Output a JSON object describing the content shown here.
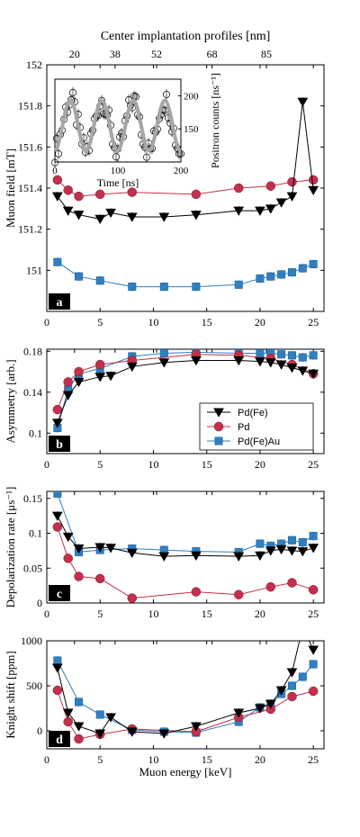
{
  "figure": {
    "top_axis_title": "Center implantation profiles [nm]",
    "top_ticks": [
      {
        "energy": 2.6,
        "label": "20"
      },
      {
        "energy": 6.4,
        "label": "38"
      },
      {
        "energy": 10.3,
        "label": "52"
      },
      {
        "energy": 15.5,
        "label": "68"
      },
      {
        "energy": 20.6,
        "label": "85"
      }
    ],
    "xlabel": "Muon energy [keV]",
    "x_ticks": [
      0,
      5,
      10,
      15,
      20,
      25
    ],
    "xlim": [
      0,
      26
    ]
  },
  "legend": [
    {
      "series": "Pd(Fe)",
      "label": "Pd(Fe)"
    },
    {
      "series": "Pd",
      "label": "Pd"
    },
    {
      "series": "Pd(Fe)Au",
      "label": "Pd(Fe)Au"
    }
  ],
  "styles": {
    "Pd(Fe)": {
      "color": "#000000",
      "marker": "triangle-down"
    },
    "Pd": {
      "color": "#c4304b",
      "marker": "circle"
    },
    "Pd(Fe)Au": {
      "color": "#2f7fc1",
      "marker": "square"
    }
  },
  "chart_data": [
    {
      "panel": "a",
      "type": "line",
      "ylabel": "Muon field [mT]",
      "ylim": [
        150.8,
        152
      ],
      "y_ticks": [
        {
          "v": 151,
          "label": "151"
        },
        {
          "v": 151.2,
          "label": "151.2"
        },
        {
          "v": 151.4,
          "label": "151.4"
        },
        {
          "v": 151.6,
          "label": "151.6"
        },
        {
          "v": 151.8,
          "label": "151.8"
        },
        {
          "v": 152,
          "label": "152"
        }
      ],
      "series": [
        {
          "name": "Pd(Fe)",
          "x": [
            1,
            2,
            3,
            5,
            6,
            8,
            11,
            14,
            18,
            20,
            21,
            22,
            23,
            24,
            25
          ],
          "y": [
            151.36,
            151.29,
            151.27,
            151.25,
            151.28,
            151.26,
            151.26,
            151.27,
            151.29,
            151.29,
            151.3,
            151.33,
            151.36,
            151.82,
            151.39
          ]
        },
        {
          "name": "Pd",
          "x": [
            1,
            2,
            3,
            5,
            8,
            14,
            18,
            21,
            23,
            25
          ],
          "y": [
            151.44,
            151.39,
            151.36,
            151.37,
            151.38,
            151.37,
            151.4,
            151.41,
            151.43,
            151.44
          ]
        },
        {
          "name": "Pd(Fe)Au",
          "x": [
            1,
            3,
            5,
            8,
            11,
            14,
            18,
            20,
            21,
            22,
            23,
            24,
            25
          ],
          "y": [
            151.04,
            150.97,
            150.95,
            150.92,
            150.92,
            150.92,
            150.93,
            150.96,
            150.97,
            150.98,
            150.99,
            151.01,
            151.03
          ]
        }
      ],
      "inset": {
        "type": "scatter",
        "xlabel": "Time [ns]",
        "ylabel": "Positron counts [ns⁻¹]",
        "x_ticks": [
          0,
          100,
          200
        ],
        "y_ticks": [
          150,
          200
        ],
        "xlim": [
          0,
          200
        ],
        "ylim": [
          100,
          225
        ],
        "fit": {
          "offset": 155,
          "amplitude": 38,
          "period_ns": 50,
          "phase": -1.5
        }
      }
    },
    {
      "panel": "b",
      "type": "line",
      "ylabel": "Asymmetry [arb.]",
      "ylim": [
        0.08,
        0.182
      ],
      "y_ticks": [
        {
          "v": 0.1,
          "label": "0.1"
        },
        {
          "v": 0.14,
          "label": "0.14"
        },
        {
          "v": 0.18,
          "label": "0.18"
        }
      ],
      "series": [
        {
          "name": "Pd(Fe)",
          "x": [
            1,
            2,
            3,
            5,
            6,
            8,
            11,
            14,
            18,
            20,
            21,
            22,
            23,
            24,
            25
          ],
          "y": [
            0.11,
            0.137,
            0.15,
            0.155,
            0.156,
            0.165,
            0.169,
            0.171,
            0.171,
            0.17,
            0.169,
            0.167,
            0.164,
            0.161,
            0.158
          ]
        },
        {
          "name": "Pd",
          "x": [
            1,
            2,
            3,
            5,
            8,
            14,
            18,
            21,
            23,
            25
          ],
          "y": [
            0.123,
            0.15,
            0.16,
            0.167,
            0.171,
            0.177,
            0.176,
            0.173,
            0.167,
            0.158
          ]
        },
        {
          "name": "Pd(Fe)Au",
          "x": [
            1,
            2,
            3,
            5,
            8,
            11,
            14,
            18,
            20,
            21,
            22,
            23,
            24,
            25
          ],
          "y": [
            0.105,
            0.143,
            0.158,
            0.163,
            0.175,
            0.178,
            0.179,
            0.178,
            0.178,
            0.178,
            0.177,
            0.176,
            0.174,
            0.176
          ]
        }
      ]
    },
    {
      "panel": "c",
      "type": "line",
      "ylabel": "Depolarization rate [μs⁻¹]",
      "ylim": [
        0,
        0.16
      ],
      "y_ticks": [
        {
          "v": 0,
          "label": "0"
        },
        {
          "v": 0.05,
          "label": "0.05"
        },
        {
          "v": 0.1,
          "label": "0.1"
        },
        {
          "v": 0.15,
          "label": "0.15"
        }
      ],
      "series": [
        {
          "name": "Pd(Fe)",
          "x": [
            1,
            2,
            3,
            5,
            6,
            8,
            11,
            14,
            18,
            20,
            21,
            22,
            23,
            24,
            25
          ],
          "y": [
            0.125,
            0.095,
            0.078,
            0.08,
            0.079,
            0.072,
            0.067,
            0.068,
            0.067,
            0.068,
            0.075,
            0.077,
            0.075,
            0.074,
            0.079
          ]
        },
        {
          "name": "Pd",
          "x": [
            1,
            2,
            3,
            5,
            8,
            14,
            18,
            21,
            23,
            25
          ],
          "y": [
            0.109,
            0.064,
            0.038,
            0.035,
            0.007,
            0.016,
            0.012,
            0.023,
            0.029,
            0.019
          ]
        },
        {
          "name": "Pd(Fe)Au",
          "x": [
            1,
            3,
            5,
            8,
            11,
            14,
            18,
            20,
            21,
            22,
            23,
            24,
            25
          ],
          "y": [
            0.157,
            0.073,
            0.076,
            0.078,
            0.076,
            0.074,
            0.073,
            0.085,
            0.082,
            0.085,
            0.09,
            0.087,
            0.096
          ]
        }
      ]
    },
    {
      "panel": "d",
      "type": "line",
      "ylabel": "Knight shift [ppm]",
      "ylim": [
        -200,
        1000
      ],
      "y_ticks": [
        {
          "v": 0,
          "label": "0"
        },
        {
          "v": 500,
          "label": "500"
        },
        {
          "v": 1000,
          "label": "1000"
        }
      ],
      "series": [
        {
          "name": "Pd(Fe)",
          "x": [
            1,
            2,
            3,
            5,
            6,
            8,
            11,
            14,
            18,
            20,
            21,
            22,
            23,
            24,
            25
          ],
          "y": [
            700,
            200,
            50,
            -30,
            150,
            -10,
            -30,
            50,
            200,
            250,
            300,
            450,
            650,
            1150,
            900
          ]
        },
        {
          "name": "Pd",
          "x": [
            1,
            2,
            3,
            5,
            8,
            14,
            18,
            21,
            23,
            25
          ],
          "y": [
            450,
            100,
            -90,
            -40,
            20,
            -10,
            150,
            240,
            380,
            440
          ]
        },
        {
          "name": "Pd(Fe)Au",
          "x": [
            1,
            3,
            5,
            8,
            11,
            14,
            18,
            20,
            21,
            22,
            23,
            24,
            25
          ],
          "y": [
            780,
            320,
            180,
            10,
            -10,
            -20,
            100,
            260,
            300,
            410,
            500,
            600,
            740
          ]
        }
      ]
    }
  ]
}
